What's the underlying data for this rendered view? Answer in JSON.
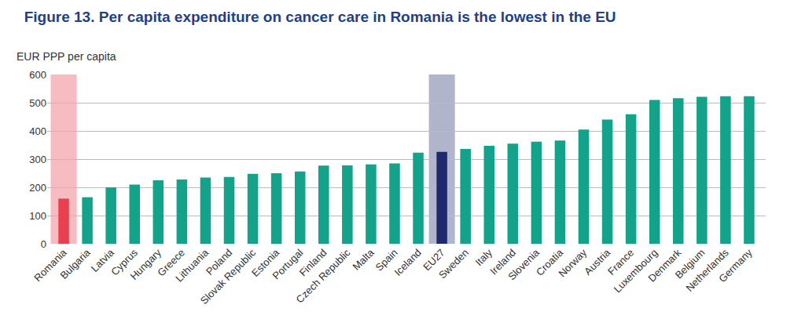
{
  "chart_data": {
    "type": "bar",
    "title": "Figure 13. Per capita expenditure on cancer care in Romania is the lowest in the EU",
    "ylabel": "EUR PPP per capita",
    "categories": [
      "Romania",
      "Bulgaria",
      "Latvia",
      "Cyprus",
      "Hungary",
      "Greece",
      "Lithuania",
      "Poland",
      "Slovak Republic",
      "Estonia",
      "Portugal",
      "Finland",
      "Czech Republic",
      "Malta",
      "Spain",
      "Iceland",
      "EU27",
      "Sweden",
      "Italy",
      "Ireland",
      "Slovenia",
      "Croatia",
      "Norway",
      "Austria",
      "France",
      "Luxembourg",
      "Denmark",
      "Belgium",
      "Netherlands",
      "Germany"
    ],
    "values": [
      160,
      165,
      200,
      210,
      225,
      228,
      235,
      237,
      248,
      250,
      256,
      277,
      278,
      281,
      285,
      323,
      326,
      336,
      347,
      355,
      362,
      366,
      405,
      440,
      459,
      510,
      516,
      521,
      523,
      523
    ],
    "colors": [
      "#e8404f",
      "#13a38b",
      "#13a38b",
      "#13a38b",
      "#13a38b",
      "#13a38b",
      "#13a38b",
      "#13a38b",
      "#13a38b",
      "#13a38b",
      "#13a38b",
      "#13a38b",
      "#13a38b",
      "#13a38b",
      "#13a38b",
      "#13a38b",
      "#1f2a6e",
      "#13a38b",
      "#13a38b",
      "#13a38b",
      "#13a38b",
      "#13a38b",
      "#13a38b",
      "#13a38b",
      "#13a38b",
      "#13a38b",
      "#13a38b",
      "#13a38b",
      "#13a38b",
      "#13a38b"
    ],
    "ylim": [
      0,
      600
    ],
    "yticks": [
      0,
      100,
      200,
      300,
      400,
      500,
      600
    ],
    "grid": true
  }
}
